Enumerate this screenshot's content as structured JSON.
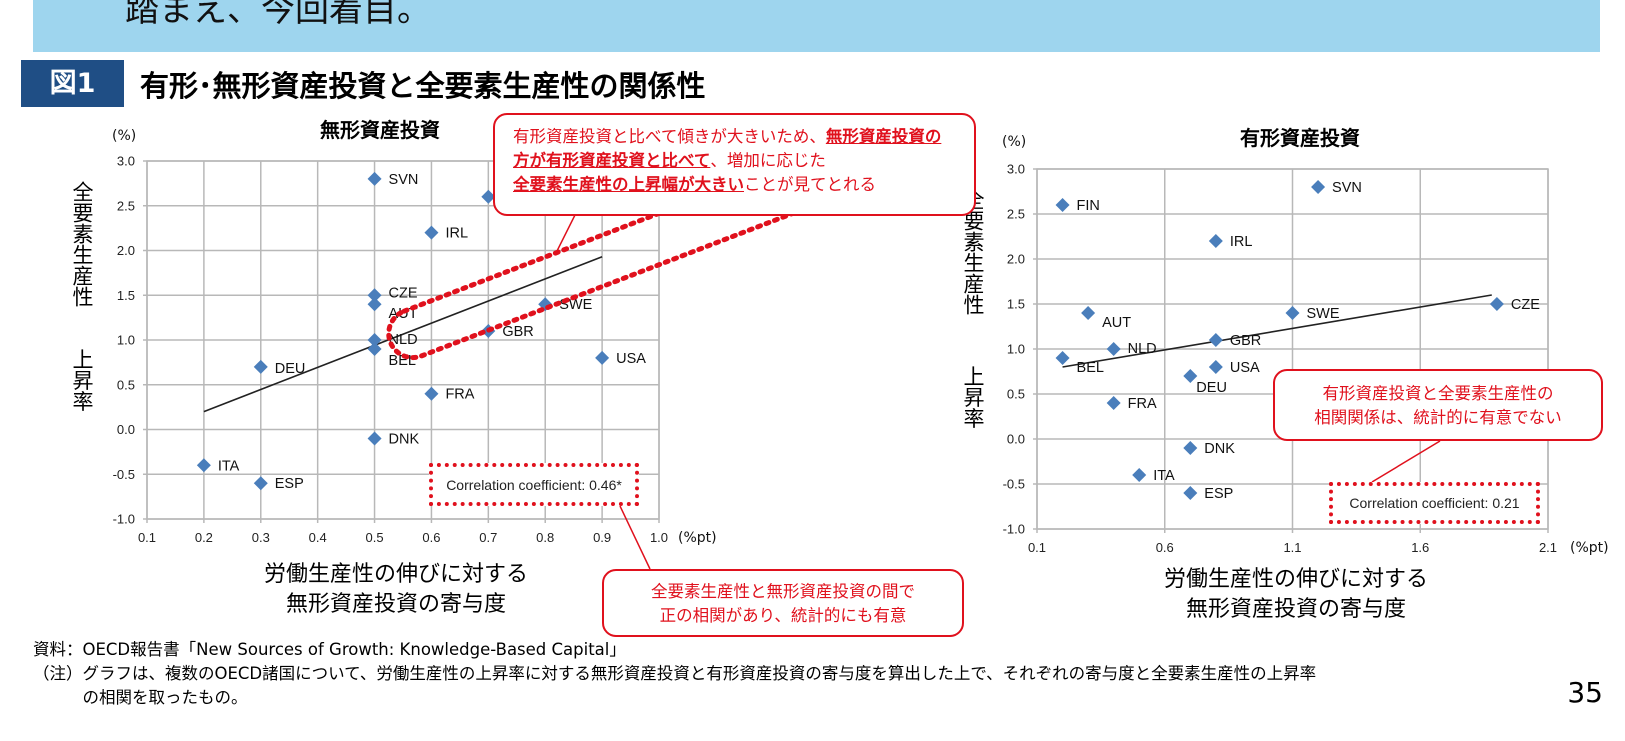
{
  "banner_text": "踏まえ、今回着目。",
  "figure": {
    "badge": "図1",
    "title": "有形･無形資産投資と全要素生産性の関係性"
  },
  "chart_data": [
    {
      "type": "scatter",
      "title": "無形資産投資",
      "y_unit": "(%)",
      "x_unit": "(%pt)",
      "ylabel_top": "全要素生産性",
      "ylabel_bottom": "上昇率",
      "xlabel_line1": "労働生産性の伸びに対する",
      "xlabel_line2": "無形資産投資の寄与度",
      "xlim": [
        0.1,
        1.0
      ],
      "ylim": [
        -1.0,
        3.0
      ],
      "x_ticks": [
        "0.1",
        "0.2",
        "0.3",
        "0.4",
        "0.5",
        "0.6",
        "0.7",
        "0.8",
        "0.9",
        "1.0"
      ],
      "y_ticks": [
        "3.0",
        "2.5",
        "2.0",
        "1.5",
        "1.0",
        "0.5",
        "0.0",
        "-0.5",
        "-1.0"
      ],
      "grid": true,
      "marker_color": "#4a7ebb",
      "points": [
        {
          "label": "SVN",
          "x": 0.5,
          "y": 2.8
        },
        {
          "label": "FIN",
          "x": 0.7,
          "y": 2.6
        },
        {
          "label": "IRL",
          "x": 0.6,
          "y": 2.2
        },
        {
          "label": "CZE",
          "x": 0.5,
          "y": 1.5
        },
        {
          "label": "AUT",
          "x": 0.5,
          "y": 1.4
        },
        {
          "label": "SWE",
          "x": 0.8,
          "y": 1.4
        },
        {
          "label": "GBR",
          "x": 0.7,
          "y": 1.1
        },
        {
          "label": "NLD",
          "x": 0.5,
          "y": 1.0
        },
        {
          "label": "BEL",
          "x": 0.5,
          "y": 0.9
        },
        {
          "label": "USA",
          "x": 0.9,
          "y": 0.8
        },
        {
          "label": "DEU",
          "x": 0.3,
          "y": 0.7
        },
        {
          "label": "FRA",
          "x": 0.6,
          "y": 0.4
        },
        {
          "label": "DNK",
          "x": 0.5,
          "y": -0.1
        },
        {
          "label": "ITA",
          "x": 0.2,
          "y": -0.4
        },
        {
          "label": "ESP",
          "x": 0.3,
          "y": -0.6
        }
      ],
      "trendline": {
        "x0": 0.2,
        "y0": 0.2,
        "x1": 0.9,
        "y1": 1.93
      },
      "correlation": "Correlation coefficient: 0.46*"
    },
    {
      "type": "scatter",
      "title": "有形資産投資",
      "y_unit": "(%)",
      "x_unit": "(%pt)",
      "ylabel_top": "全要素生産性",
      "ylabel_bottom": "上昇率",
      "xlabel_line1": "労働生産性の伸びに対する",
      "xlabel_line2": "無形資産投資の寄与度",
      "xlim": [
        0.1,
        2.1
      ],
      "ylim": [
        -1.0,
        3.0
      ],
      "x_ticks": [
        "0.1",
        "0.6",
        "1.1",
        "1.6",
        "2.1"
      ],
      "y_ticks": [
        "3.0",
        "2.5",
        "2.0",
        "1.5",
        "1.0",
        "0.5",
        "0.0",
        "-0.5",
        "-1.0"
      ],
      "grid": true,
      "marker_color": "#4a7ebb",
      "points": [
        {
          "label": "SVN",
          "x": 1.2,
          "y": 2.8
        },
        {
          "label": "FIN",
          "x": 0.2,
          "y": 2.6
        },
        {
          "label": "IRL",
          "x": 0.8,
          "y": 2.2
        },
        {
          "label": "CZE",
          "x": 1.9,
          "y": 1.5
        },
        {
          "label": "AUT",
          "x": 0.3,
          "y": 1.4
        },
        {
          "label": "SWE",
          "x": 1.1,
          "y": 1.4
        },
        {
          "label": "GBR",
          "x": 0.8,
          "y": 1.1
        },
        {
          "label": "NLD",
          "x": 0.4,
          "y": 1.0
        },
        {
          "label": "BEL",
          "x": 0.2,
          "y": 0.9
        },
        {
          "label": "USA",
          "x": 0.8,
          "y": 0.8
        },
        {
          "label": "DEU",
          "x": 0.7,
          "y": 0.7
        },
        {
          "label": "FRA",
          "x": 0.4,
          "y": 0.4
        },
        {
          "label": "DNK",
          "x": 0.7,
          "y": -0.1
        },
        {
          "label": "ITA",
          "x": 0.5,
          "y": -0.4
        },
        {
          "label": "ESP",
          "x": 0.7,
          "y": -0.6
        }
      ],
      "trendline": {
        "x0": 0.2,
        "y0": 0.8,
        "x1": 1.88,
        "y1": 1.6
      },
      "correlation": "Correlation coefficient: 0.21"
    }
  ],
  "callouts": {
    "slope_pre": "有形資産投資と比べて傾きが大きいため、",
    "slope_bold1": "無形資産投資の方が有形資産投資と比べて",
    "slope_mid": "、増加に応じた",
    "slope_bold2": "全要素生産性の上昇幅が大きい",
    "slope_post": "ことが見てとれる",
    "significant_line1": "全要素生産性と無形資産投資の間で",
    "significant_line2": "正の相関があり、統計的にも有意",
    "not_significant_line1": "有形資産投資と全要素生産性の",
    "not_significant_line2": "相関関係は、統計的に有意でない"
  },
  "footer": {
    "source": "資料：OECD報告書「New Sources of Growth: Knowledge-Based Capital」",
    "note_line1": "（注）グラフは、複数のOECD諸国について、労働生産性の上昇率に対する無形資産投資と有形資産投資の寄与度を算出した上で、それぞれの寄与度と全要素生産性の上昇率",
    "note_line2": "　　　の相関を取ったもの。"
  },
  "page_number": "35",
  "colors": {
    "banner": "#9ed5ee",
    "badge": "#1f4e85",
    "accent_red": "#e0111d",
    "marker": "#4a7ebb"
  }
}
